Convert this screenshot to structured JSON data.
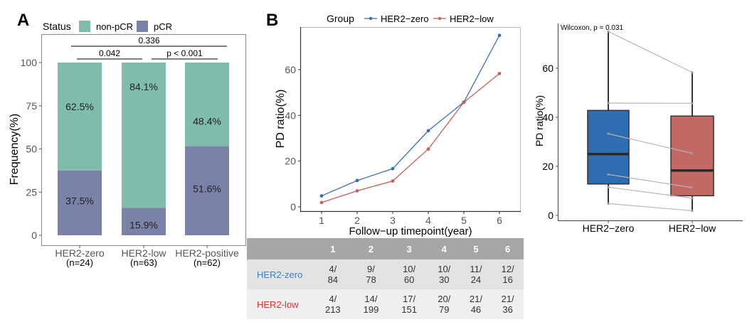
{
  "panels": {
    "A": "A",
    "B": "B"
  },
  "colors": {
    "non_pCR": "#7fbcab",
    "pCR": "#7a82a8",
    "her2_zero": "#3a6fb0",
    "her2_low": "#c4615e",
    "box_zero": "#2e6db0",
    "box_low": "#c26965",
    "table_zero_label": "#3a83c6",
    "table_low_label": "#e0302f"
  },
  "chart_data": [
    {
      "id": "A",
      "type": "bar",
      "stacked": true,
      "title": "",
      "legend": {
        "title": "Status",
        "position": "top",
        "entries": [
          "non-pCR",
          "pCR"
        ]
      },
      "categories": [
        "HER2-zero",
        "HER2-low",
        "HER2-positive"
      ],
      "category_sublabels": [
        "(n=24)",
        "(n=63)",
        "(n=62)"
      ],
      "series": [
        {
          "name": "pCR",
          "values": [
            37.5,
            15.9,
            51.6
          ],
          "labels": [
            "37.5%",
            "15.9%",
            "51.6%"
          ]
        },
        {
          "name": "non-pCR",
          "values": [
            62.5,
            84.1,
            48.4
          ],
          "labels": [
            "62.5%",
            "84.1%",
            "48.4%"
          ]
        }
      ],
      "xlabel": "",
      "ylabel": "Frequency(%)",
      "ylim": [
        0,
        100
      ],
      "yticks": [
        0,
        25,
        50,
        75,
        100
      ],
      "annotations": [
        {
          "from": "HER2-zero",
          "to": "HER2-positive",
          "text": "0.336",
          "level": 2
        },
        {
          "from": "HER2-zero",
          "to": "HER2-low",
          "text": "0.042",
          "level": 1
        },
        {
          "from": "HER2-low",
          "to": "HER2-positive",
          "text": "p < 0.001",
          "level": 1
        }
      ],
      "grid": false
    },
    {
      "id": "B",
      "type": "line",
      "title": "",
      "legend": {
        "title": "Group",
        "position": "top",
        "entries": [
          "HER2−zero",
          "HER2−low"
        ]
      },
      "x": [
        1,
        2,
        3,
        4,
        5,
        6
      ],
      "series": [
        {
          "name": "HER2−zero",
          "values": [
            4.8,
            11.5,
            16.7,
            33.3,
            45.8,
            75.0
          ]
        },
        {
          "name": "HER2−low",
          "values": [
            1.9,
            7.0,
            11.3,
            25.3,
            45.7,
            58.3
          ]
        }
      ],
      "xlabel": "Follow−up timepoint(year)",
      "ylabel": "PD ratio(%)",
      "xticks": [
        1,
        2,
        3,
        4,
        5,
        6
      ],
      "yticks": [
        0,
        20,
        40,
        60
      ],
      "xlim": [
        0.8,
        6.2
      ],
      "ylim": [
        -2,
        78
      ],
      "grid": false
    },
    {
      "id": "C",
      "type": "box",
      "title": "",
      "annotation": "Wilcoxon, p = 0.031",
      "categories": [
        "HER2−zero",
        "HER2−low"
      ],
      "boxes": [
        {
          "name": "HER2−zero",
          "min": 4.8,
          "q1": 12.8,
          "median": 25.0,
          "q3": 42.8,
          "max": 75.0
        },
        {
          "name": "HER2−low",
          "min": 1.9,
          "q1": 8.0,
          "median": 18.3,
          "q3": 40.5,
          "max": 58.3
        }
      ],
      "paired_points": [
        [
          4.8,
          1.9
        ],
        [
          11.5,
          7.0
        ],
        [
          16.7,
          11.3
        ],
        [
          33.3,
          25.3
        ],
        [
          45.8,
          45.7
        ],
        [
          75.0,
          58.3
        ]
      ],
      "xlabel": "",
      "ylabel": "PD ratio(%)",
      "yticks": [
        0,
        20,
        40,
        60
      ],
      "ylim": [
        -2,
        78
      ],
      "grid": false
    }
  ],
  "table": {
    "headers": [
      "",
      "1",
      "2",
      "3",
      "4",
      "5",
      "6"
    ],
    "rows": [
      {
        "label": "HER2-zero",
        "cells": [
          [
            "4/",
            "84"
          ],
          [
            "9/",
            "78"
          ],
          [
            "10/",
            "60"
          ],
          [
            "10/",
            "30"
          ],
          [
            "11/",
            "24"
          ],
          [
            "12/",
            "16"
          ]
        ]
      },
      {
        "label": "HER2-low",
        "cells": [
          [
            "4/",
            "213"
          ],
          [
            "14/",
            "199"
          ],
          [
            "17/",
            "151"
          ],
          [
            "20/",
            "79"
          ],
          [
            "21/",
            "46"
          ],
          [
            "21/",
            "36"
          ]
        ]
      }
    ]
  }
}
